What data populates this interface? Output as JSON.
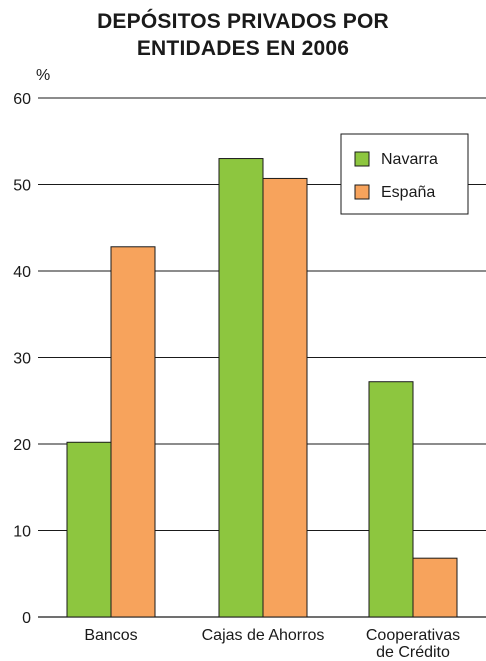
{
  "chart_data": {
    "type": "bar",
    "title_lines": [
      "DEPÓSITOS PRIVADOS POR",
      "ENTIDADES EN 2006"
    ],
    "ylabel": "%",
    "ylim": [
      0,
      60
    ],
    "yticks": [
      "0",
      "10",
      "20",
      "30",
      "40",
      "50",
      "60"
    ],
    "grid": true,
    "legend_position": "top-right",
    "categories": [
      [
        "Bancos"
      ],
      [
        "Cajas de Ahorros"
      ],
      [
        "Cooperativas",
        "de Crédito"
      ]
    ],
    "series": [
      {
        "name": "Navarra",
        "color": "#8dc63f",
        "values": [
          20.2,
          53.0,
          27.2
        ]
      },
      {
        "name": "España",
        "color": "#f7a35c",
        "values": [
          42.8,
          50.7,
          6.8
        ]
      }
    ]
  }
}
